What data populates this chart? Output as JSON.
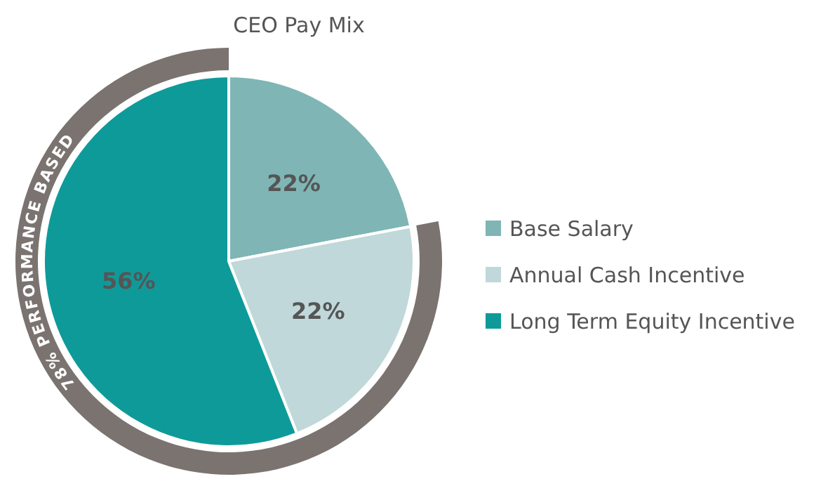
{
  "chart_data": {
    "type": "pie",
    "title": "CEO Pay Mix",
    "categories": [
      "Base Salary",
      "Annual Cash Incentive",
      "Long Term Equity Incentive"
    ],
    "values": [
      22,
      22,
      56
    ],
    "colors": [
      "#7fb5b5",
      "#c0d8d9",
      "#0f9a9a"
    ],
    "value_labels": [
      "22%",
      "22%",
      "56%"
    ],
    "legend": "right",
    "annotations": [
      "78% PERFORMANCE BASED"
    ]
  }
}
